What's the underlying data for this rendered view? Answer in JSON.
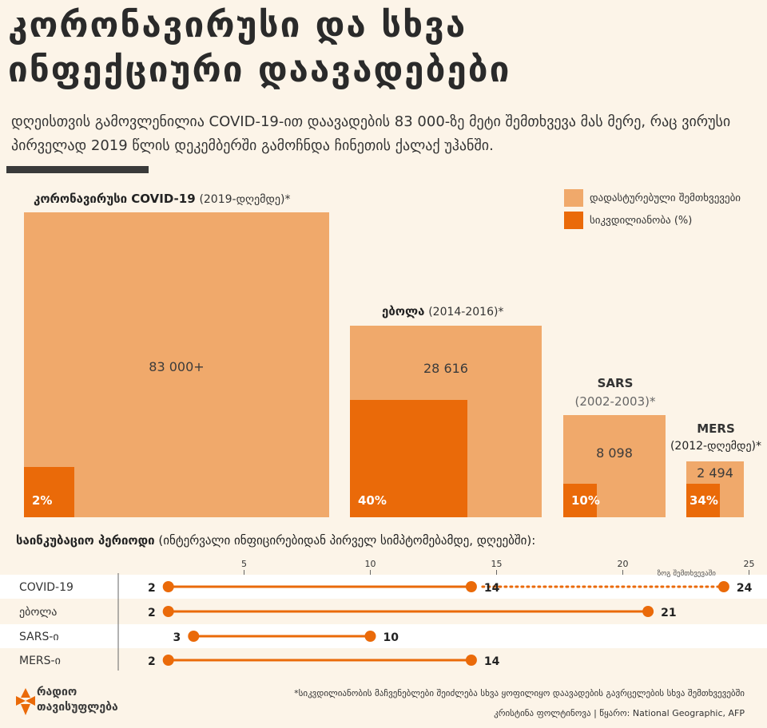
{
  "title": {
    "line1": "კორონავირუსი და სხვა",
    "line2": "ინფექციური დაავადებები"
  },
  "subtitle": "დღეისთვის გამოვლენილია COVID-19-ით დაავადების 83 000-ზე მეტი შემთხვევა მას მერე, რაც ვირუსი პირველად 2019 წლის დეკემბერში გამოჩნდა ჩინეთის ქალაქ უჰანში.",
  "legend": {
    "confirmed": "დადასტურებული შემთხვევები",
    "mortality": "სიკვდილიანობა (%)"
  },
  "colors": {
    "light": "#f0a96b",
    "dark": "#ea6a09",
    "background": "#fcf4e8"
  },
  "chart_data": [
    {
      "type": "area-squares",
      "title": "კორონავირუსი და სხვა ინფექციური დაავადებები",
      "series": [
        "დადასტურებული შემთხვევები",
        "სიკვდილიანობა (%)"
      ],
      "diseases": [
        {
          "name": "კორონავირუსი COVID-19",
          "years": "(2019-დღემდე)*",
          "cases": 83000,
          "cases_label": "83 000+",
          "mortality_pct": 2,
          "mortality_label": "2%"
        },
        {
          "name": "ებოლა",
          "years": "(2014-2016)*",
          "cases": 28616,
          "cases_label": "28 616",
          "mortality_pct": 40,
          "mortality_label": "40%"
        },
        {
          "name": "SARS",
          "years": "(2002-2003)*",
          "cases": 8098,
          "cases_label": "8 098",
          "mortality_pct": 10,
          "mortality_label": "10%"
        },
        {
          "name": "MERS",
          "years": "(2012-დღემდე)*",
          "cases": 2494,
          "cases_label": "2 494",
          "mortality_pct": 34,
          "mortality_label": "34%"
        }
      ]
    },
    {
      "type": "range-dot",
      "title": "საინკუბაციო პერიოდი",
      "subtitle": "(ინტერვალი ინფიცირებიდან პირველ სიმპტომებამდე, დღეებში):",
      "xlim": [
        0,
        25
      ],
      "ticks": [
        5,
        10,
        15,
        20,
        25
      ],
      "rows": [
        {
          "label": "COVID-19",
          "min": 2,
          "max": 14,
          "extended_max": 24,
          "extended_note": "ზოგ შემთხვევაში"
        },
        {
          "label": "ებოლა",
          "min": 2,
          "max": 21
        },
        {
          "label": "SARS-ი",
          "min": 3,
          "max": 10
        },
        {
          "label": "MERS-ი",
          "min": 2,
          "max": 14
        }
      ]
    }
  ],
  "footnote": "*სიკვდილიანობის მაჩვენებლები შეიძლება სხვა ყოფილიყო დაავადების გავრცელების სხვა შემთხვევებში",
  "credit": "კრისტინა ფოლტინოვა | წყარო: National Geographic, AFP",
  "logo": {
    "line1": "რადიო",
    "line2": "თავისუფლება"
  }
}
